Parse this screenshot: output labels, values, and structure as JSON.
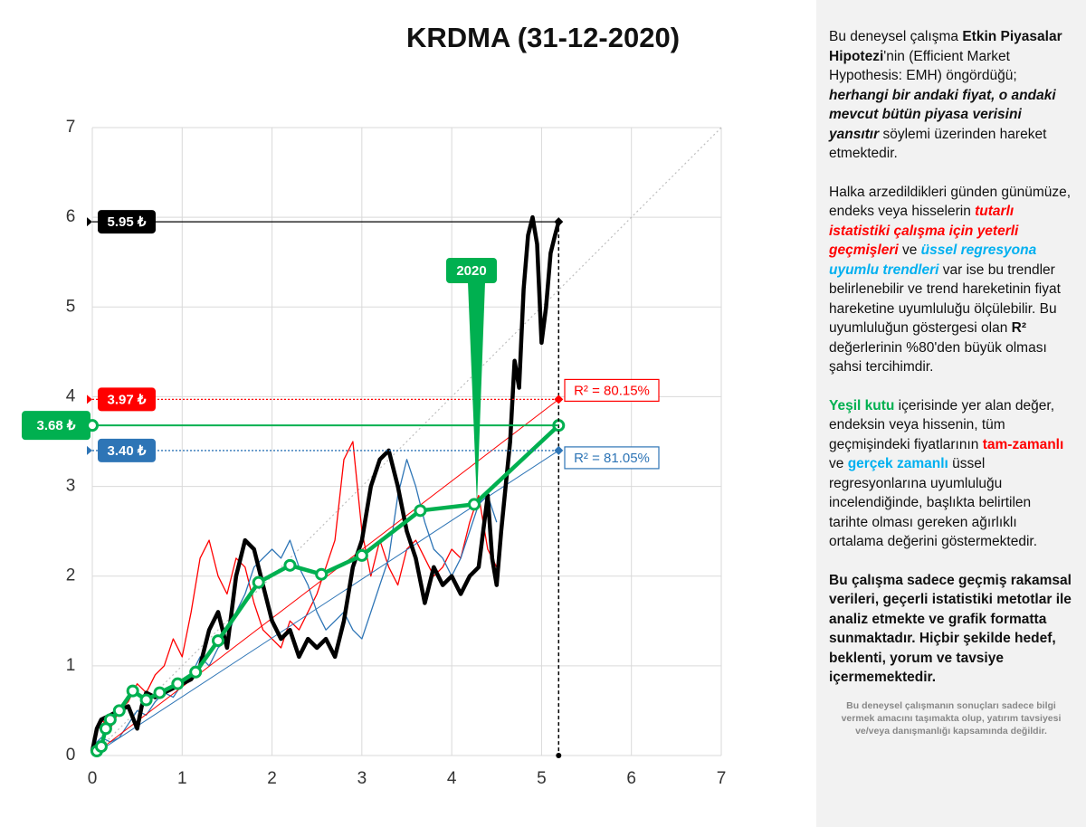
{
  "chart_data": {
    "type": "line",
    "title": "KRDMA (31-12-2020)",
    "xlim": [
      0,
      7
    ],
    "xticks": [
      0,
      1,
      2,
      3,
      4,
      5,
      6,
      7
    ],
    "ylim": [
      0,
      7
    ],
    "yticks": [
      0,
      1,
      2,
      3,
      4,
      5,
      6,
      7
    ],
    "grid": true,
    "annotation": "2020",
    "series": [
      {
        "color": "#bfbfbf",
        "style": "dotted",
        "x": [
          0,
          7
        ],
        "values": [
          0,
          7
        ]
      },
      {
        "color": "#ff0000",
        "style": "normal",
        "x": [
          0,
          0.1,
          0.2,
          0.3,
          0.4,
          0.5,
          0.6,
          0.7,
          0.8,
          0.9,
          1.0,
          1.1,
          1.2,
          1.3,
          1.4,
          1.5,
          1.6,
          1.7,
          1.8,
          1.9,
          2.0,
          2.1,
          2.2,
          2.3,
          2.4,
          2.5,
          2.6,
          2.7,
          2.8,
          2.9,
          3.0,
          3.1,
          3.2,
          3.3,
          3.4,
          3.5,
          3.6,
          3.7,
          3.8,
          3.9,
          4.0,
          4.1,
          4.2,
          4.3,
          4.4,
          4.5
        ],
        "values": [
          0.1,
          0.4,
          0.3,
          0.5,
          0.6,
          0.8,
          0.7,
          0.9,
          1.0,
          1.3,
          1.1,
          1.6,
          2.2,
          2.4,
          2.0,
          1.8,
          2.2,
          2.1,
          1.7,
          1.4,
          1.3,
          1.2,
          1.5,
          1.4,
          1.6,
          1.8,
          2.1,
          2.4,
          3.3,
          3.5,
          2.5,
          2.0,
          2.4,
          2.1,
          1.9,
          2.3,
          2.4,
          2.2,
          2.0,
          2.1,
          2.3,
          2.2,
          2.6,
          2.9,
          2.3,
          2.1
        ]
      },
      {
        "color": "#2e75b6",
        "style": "normal",
        "x": [
          0,
          0.1,
          0.2,
          0.3,
          0.4,
          0.5,
          0.6,
          0.7,
          0.8,
          0.9,
          1.0,
          1.1,
          1.2,
          1.3,
          1.4,
          1.5,
          1.6,
          1.7,
          1.8,
          1.9,
          2.0,
          2.1,
          2.2,
          2.3,
          2.4,
          2.5,
          2.6,
          2.7,
          2.8,
          2.9,
          3.0,
          3.1,
          3.2,
          3.3,
          3.4,
          3.5,
          3.6,
          3.7,
          3.8,
          3.9,
          4.0,
          4.1,
          4.2,
          4.3,
          4.4,
          4.5
        ],
        "values": [
          0.1,
          0.2,
          0.15,
          0.2,
          0.35,
          0.5,
          0.45,
          0.6,
          0.7,
          0.65,
          0.8,
          0.9,
          1.1,
          1.0,
          1.2,
          1.3,
          1.6,
          1.8,
          2.1,
          2.2,
          2.3,
          2.2,
          2.4,
          2.1,
          1.9,
          1.6,
          1.4,
          1.5,
          1.6,
          1.4,
          1.3,
          1.6,
          1.9,
          2.2,
          2.9,
          3.3,
          3.0,
          2.6,
          2.3,
          2.2,
          2.0,
          2.2,
          2.5,
          2.8,
          2.9,
          2.6
        ]
      },
      {
        "color": "#ff0000",
        "style": "thin",
        "x": [
          0,
          5.19
        ],
        "values": [
          0,
          3.97
        ]
      },
      {
        "color": "#2e75b6",
        "style": "thin",
        "x": [
          0,
          5.19
        ],
        "values": [
          0,
          3.4
        ]
      },
      {
        "color": "#000000",
        "style": "thick",
        "x": [
          0,
          0.05,
          0.1,
          0.2,
          0.3,
          0.4,
          0.5,
          0.55,
          0.6,
          0.7,
          0.8,
          0.9,
          1.0,
          1.1,
          1.2,
          1.3,
          1.4,
          1.5,
          1.6,
          1.7,
          1.8,
          1.9,
          2.0,
          2.1,
          2.2,
          2.3,
          2.4,
          2.5,
          2.6,
          2.7,
          2.8,
          2.9,
          3.0,
          3.1,
          3.2,
          3.3,
          3.4,
          3.5,
          3.6,
          3.7,
          3.8,
          3.9,
          4.0,
          4.1,
          4.2,
          4.3,
          4.4,
          4.45,
          4.5,
          4.55,
          4.6,
          4.65,
          4.7,
          4.75,
          4.8,
          4.85,
          4.9,
          4.95,
          5.0,
          5.05,
          5.1,
          5.15,
          5.19
        ],
        "values": [
          0.05,
          0.3,
          0.4,
          0.45,
          0.5,
          0.55,
          0.3,
          0.55,
          0.7,
          0.65,
          0.7,
          0.75,
          0.8,
          0.85,
          1.0,
          1.4,
          1.6,
          1.2,
          2.0,
          2.4,
          2.3,
          1.9,
          1.5,
          1.3,
          1.4,
          1.1,
          1.3,
          1.2,
          1.3,
          1.1,
          1.5,
          2.1,
          2.4,
          3.0,
          3.3,
          3.4,
          3.0,
          2.5,
          2.2,
          1.7,
          2.1,
          1.9,
          2.0,
          1.8,
          2.0,
          2.1,
          2.9,
          2.2,
          1.9,
          2.5,
          3.0,
          3.5,
          4.4,
          4.1,
          5.2,
          5.8,
          6.0,
          5.7,
          4.6,
          5.0,
          5.6,
          5.8,
          5.95
        ]
      },
      {
        "color": "#00b050",
        "style": "thick",
        "markers": true,
        "x": [
          0.05,
          0.1,
          0.15,
          0.2,
          0.3,
          0.45,
          0.6,
          0.75,
          0.95,
          1.15,
          1.4,
          1.85,
          2.2,
          2.55,
          3.0,
          3.65,
          4.25,
          5.19
        ],
        "values": [
          0.05,
          0.1,
          0.3,
          0.4,
          0.5,
          0.72,
          0.62,
          0.7,
          0.8,
          0.93,
          1.28,
          1.93,
          2.12,
          2.02,
          2.23,
          2.73,
          2.8,
          3.68
        ]
      }
    ],
    "markers": [
      {
        "value": 5.95,
        "label": "5.95 ₺",
        "color": "#000000"
      },
      {
        "value": 3.97,
        "label": "3.97 ₺",
        "color": "#ff0000"
      },
      {
        "value": 3.68,
        "label": "3.68 ₺",
        "color": "#00b050"
      },
      {
        "value": 3.4,
        "label": "3.40 ₺",
        "color": "#2e75b6"
      }
    ],
    "r2_labels": [
      {
        "label": "R² = 80.15%",
        "color": "#ff0000"
      },
      {
        "label": "R² = 81.05%",
        "color": "#2e75b6"
      }
    ]
  },
  "side_panel": {
    "paragraphs": [
      [
        {
          "text": "Bu deneysel çalışma ",
          "style": ""
        },
        {
          "text": "Etkin Piyasalar Hipotezi",
          "style": "b"
        },
        {
          "text": "'nin (Efficient Market Hypothesis: EMH) öngördüğü; ",
          "style": ""
        },
        {
          "text": "herhangi bir andaki fiyat, o andaki mevcut bütün piyasa verisini yansıtır",
          "style": "b i"
        },
        {
          "text": "  söylemi üzerinden hareket etmektedir.",
          "style": ""
        }
      ],
      [
        {
          "text": "Halka arzedildikleri günden günümüze, endeks veya hisselerin ",
          "style": ""
        },
        {
          "text": "tutarlı istatistiki çalışma için yeterli geçmişleri",
          "style": "b i red"
        },
        {
          "text": " ve ",
          "style": ""
        },
        {
          "text": "üssel regresyona uyumlu trendleri",
          "style": "b i blue"
        },
        {
          "text": " var ise bu trendler belirlenebilir  ve trend hareketinin fiyat hareketine uyumluluğu ölçülebilir.  Bu uyumluluğun göstergesi olan ",
          "style": ""
        },
        {
          "text": "R²",
          "style": "b"
        },
        {
          "text": " değerlerinin %80'den büyük olması şahsi tercihimdir.",
          "style": ""
        }
      ],
      [
        {
          "text": "Yeşil kutu",
          "style": "b green"
        },
        {
          "text": " içerisinde yer alan değer, endeksin veya hissenin, tüm geçmişindeki fiyatlarının ",
          "style": ""
        },
        {
          "text": "tam-zamanlı",
          "style": "b red"
        },
        {
          "text": " ve ",
          "style": ""
        },
        {
          "text": "gerçek zamanlı",
          "style": "b blue"
        },
        {
          "text": " üssel regresyonlarına uyumluluğu incelendiğinde, başlıkta belirtilen tarihte olması gereken ağırlıklı ortalama değerini göstermektedir.",
          "style": ""
        }
      ],
      [
        {
          "text": "Bu çalışma sadece geçmiş rakamsal verileri, geçerli istatistiki metotlar ile  analiz etmekte ve grafik formatta sunmaktadır. Hiçbir şekilde hedef, beklenti, yorum ve tavsiye içermemektedir.",
          "style": "b"
        }
      ]
    ],
    "footnote": "Bu deneysel çalışmanın sonuçları sadece bilgi vermek amacını taşımakta olup, yatırım tavsiyesi ve/veya danışmanlığı kapsamında değildir."
  }
}
